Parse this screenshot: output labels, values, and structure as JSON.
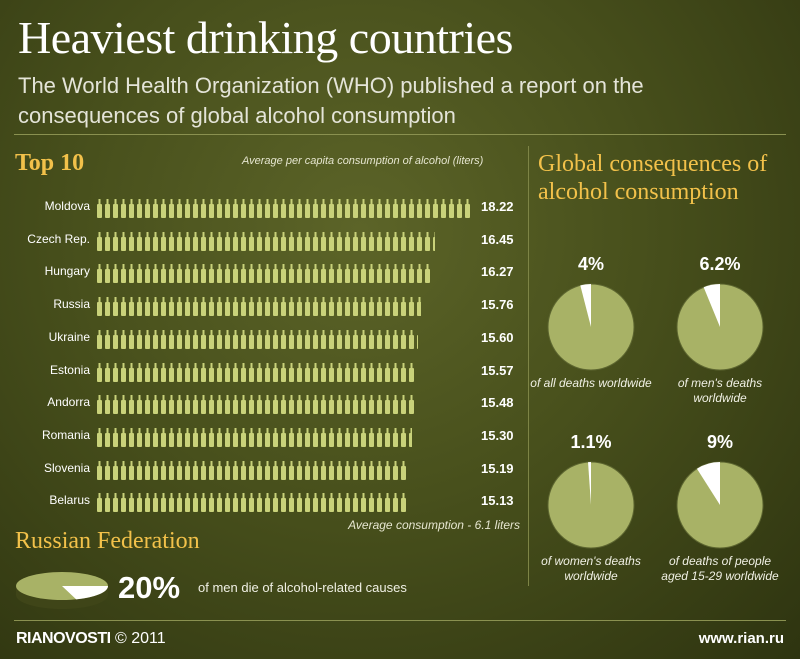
{
  "header": {
    "title": "Heaviest drinking countries",
    "subtitle": "The World Health Organization (WHO) published a report on the consequences of global alcohol consumption"
  },
  "top10": {
    "title": "Top 10",
    "unit_note": "Average per capita consumption of alcohol (liters)",
    "average_note": "Average consumption - 6.1 liters"
  },
  "global": {
    "title": "Global consequences of alcohol consumption"
  },
  "russia": {
    "title": "Russian Federation",
    "percent": "20%",
    "text": "of men die of alcohol-related causes"
  },
  "footer": {
    "brand": "RIANOVOSTI",
    "copyright": "© 2011",
    "url": "www.rian.ru"
  },
  "colors": {
    "background": "#48501c",
    "accent": "#f2c14a",
    "bottle": "#c9d27a",
    "pie_fill": "#a8b266",
    "pie_slice": "#ffffff"
  },
  "chart_data": [
    {
      "type": "bar",
      "title": "Top 10",
      "ylabel": "Average per capita consumption of alcohol (liters)",
      "categories": [
        "Moldova",
        "Czech Rep.",
        "Hungary",
        "Russia",
        "Ukraine",
        "Estonia",
        "Andorra",
        "Romania",
        "Slovenia",
        "Belarus"
      ],
      "values": [
        18.22,
        16.45,
        16.27,
        15.76,
        15.6,
        15.57,
        15.48,
        15.3,
        15.19,
        15.13
      ],
      "value_labels": [
        "18.22",
        "16.45",
        "16.27",
        "15.76",
        "15.60",
        "15.57",
        "15.48",
        "15.30",
        "15.19",
        "15.13"
      ],
      "orientation": "horizontal"
    },
    {
      "type": "pie",
      "title": "Global consequences of alcohol consumption",
      "items": [
        {
          "percent_label": "4%",
          "value": 4,
          "caption": "of all deaths worldwide"
        },
        {
          "percent_label": "6.2%",
          "value": 6.2,
          "caption": "of men's deaths worldwide"
        },
        {
          "percent_label": "1.1%",
          "value": 1.1,
          "caption": "of women's deaths worldwide"
        },
        {
          "percent_label": "9%",
          "value": 9,
          "caption": "of deaths of people aged 15-29 worldwide"
        }
      ]
    },
    {
      "type": "pie",
      "title": "Russian Federation",
      "items": [
        {
          "percent_label": "20%",
          "value": 20,
          "caption": "of men die of alcohol-related causes"
        }
      ]
    }
  ]
}
